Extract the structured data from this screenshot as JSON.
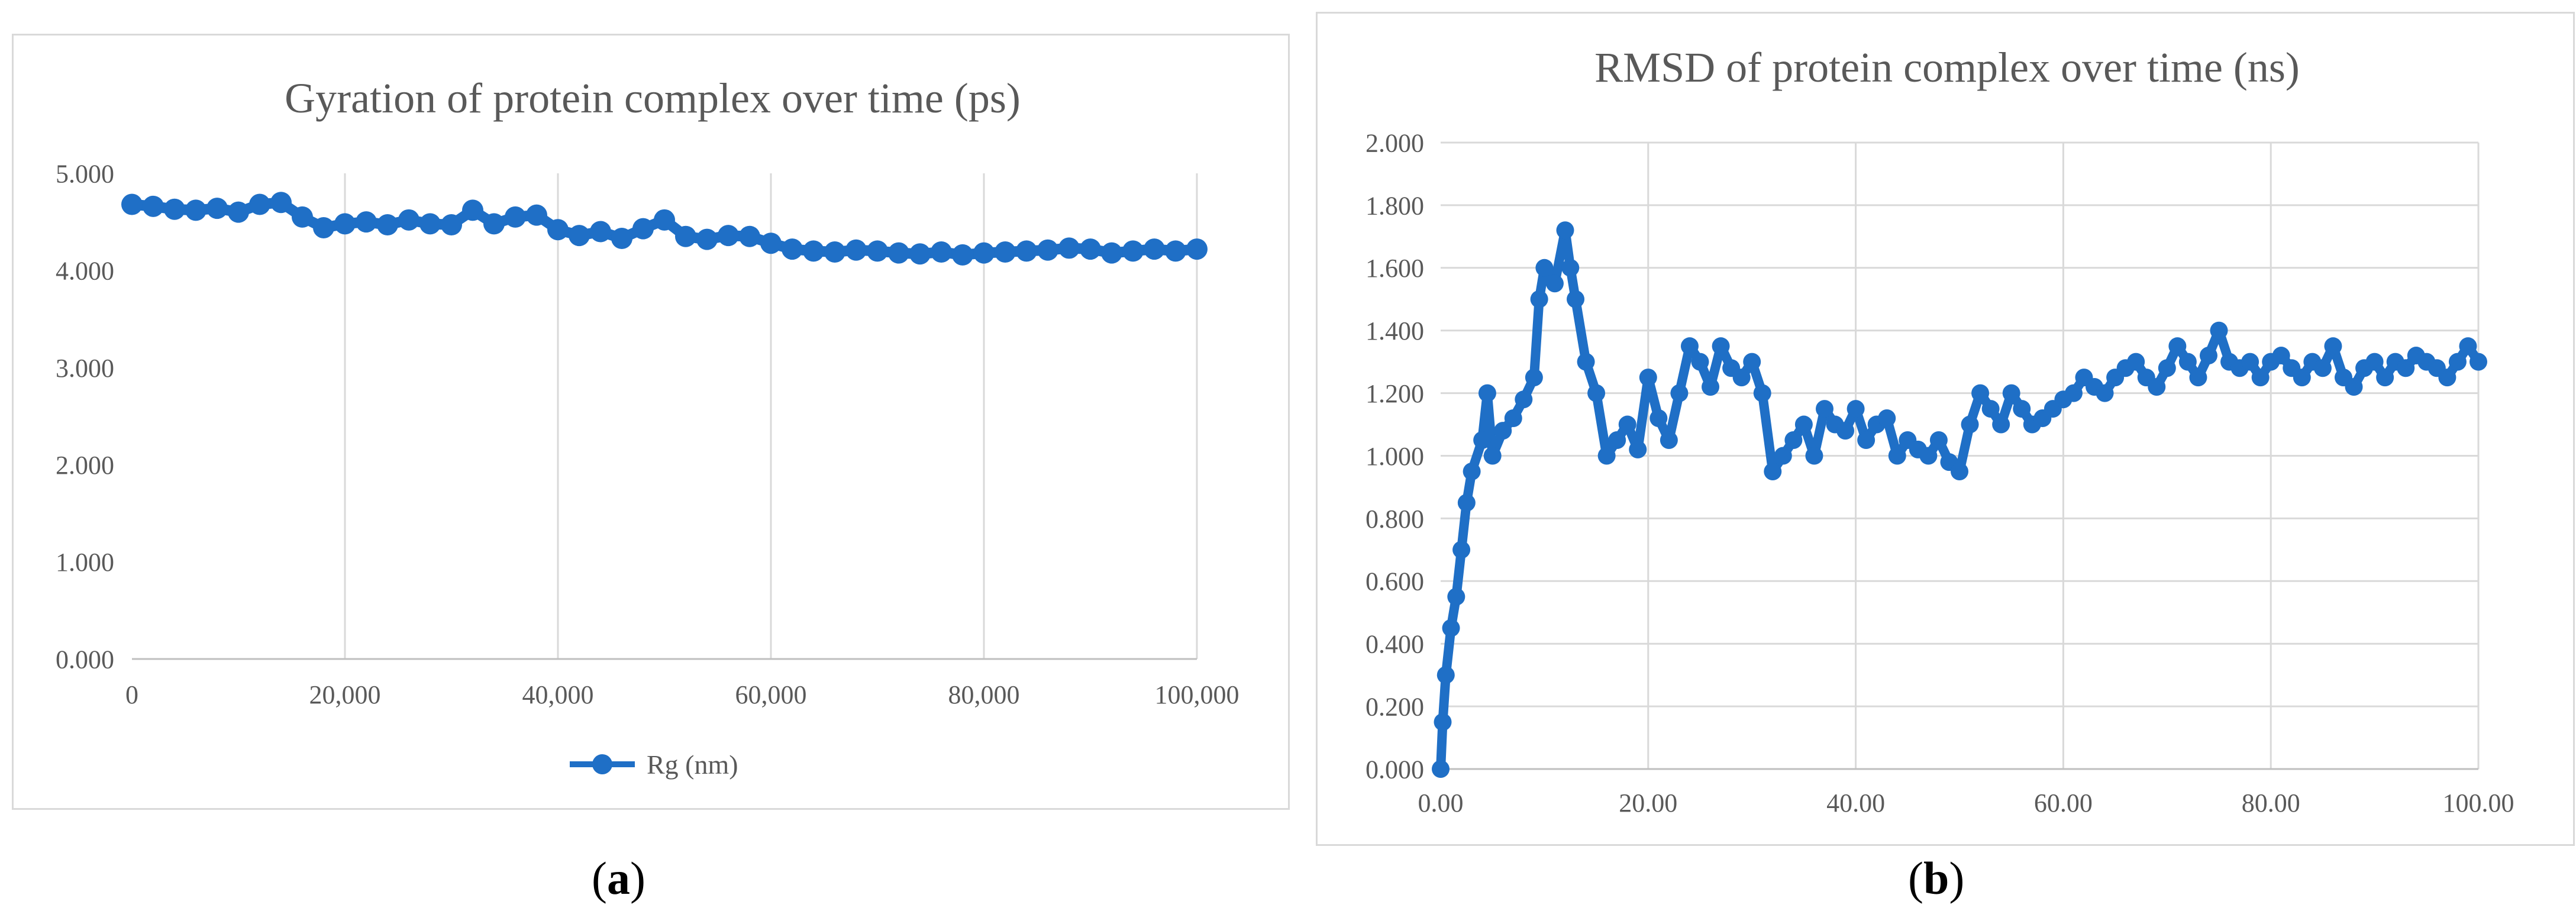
{
  "figure": {
    "panel_a": {
      "label_open": "(",
      "label_letter": "a",
      "label_close": ")"
    },
    "panel_b": {
      "label_open": "(",
      "label_letter": "b",
      "label_close": ")"
    }
  },
  "colors": {
    "series": "#1f6fc6",
    "grid": "#d9d9d9",
    "axis_text": "#595959",
    "title_text": "#595959"
  },
  "chart_data": [
    {
      "type": "line",
      "title": "Gyration of protein complex over time (ps)",
      "xlabel": "",
      "ylabel": "",
      "xlim": [
        0,
        100000
      ],
      "ylim": [
        0,
        5
      ],
      "x_ticks": [
        0,
        20000,
        40000,
        60000,
        80000,
        100000
      ],
      "x_tick_labels": [
        "0",
        "20,000",
        "40,000",
        "60,000",
        "80,000",
        "100,000"
      ],
      "y_ticks": [
        0,
        1,
        2,
        3,
        4,
        5
      ],
      "y_tick_labels": [
        "0.000",
        "1.000",
        "2.000",
        "3.000",
        "4.000",
        "5.000"
      ],
      "grid": "vertical",
      "legend": "bottom",
      "markers": true,
      "series": [
        {
          "name": "Rg (nm)",
          "x": [
            0,
            2000,
            4000,
            6000,
            8000,
            10000,
            12000,
            14000,
            16000,
            18000,
            20000,
            22000,
            24000,
            26000,
            28000,
            30000,
            32000,
            34000,
            36000,
            38000,
            40000,
            42000,
            44000,
            46000,
            48000,
            50000,
            52000,
            54000,
            56000,
            58000,
            60000,
            62000,
            64000,
            66000,
            68000,
            70000,
            72000,
            74000,
            76000,
            78000,
            80000,
            82000,
            84000,
            86000,
            88000,
            90000,
            92000,
            94000,
            96000,
            98000,
            100000
          ],
          "y": [
            4.68,
            4.66,
            4.63,
            4.62,
            4.64,
            4.6,
            4.68,
            4.7,
            4.55,
            4.44,
            4.48,
            4.5,
            4.47,
            4.52,
            4.48,
            4.47,
            4.62,
            4.48,
            4.55,
            4.57,
            4.42,
            4.36,
            4.4,
            4.33,
            4.43,
            4.52,
            4.35,
            4.32,
            4.36,
            4.35,
            4.28,
            4.22,
            4.2,
            4.19,
            4.21,
            4.2,
            4.18,
            4.17,
            4.19,
            4.16,
            4.18,
            4.19,
            4.2,
            4.21,
            4.23,
            4.22,
            4.18,
            4.2,
            4.22,
            4.2,
            4.22
          ]
        }
      ]
    },
    {
      "type": "line",
      "title": "RMSD of protein complex over time (ns)",
      "xlabel": "",
      "ylabel": "",
      "xlim": [
        0,
        100
      ],
      "ylim": [
        0,
        2
      ],
      "x_ticks": [
        0,
        20,
        40,
        60,
        80,
        100
      ],
      "x_tick_labels": [
        "0.00",
        "20.00",
        "40.00",
        "60.00",
        "80.00",
        "100.00"
      ],
      "y_ticks": [
        0,
        0.2,
        0.4,
        0.6,
        0.8,
        1.0,
        1.2,
        1.4,
        1.6,
        1.8,
        2.0
      ],
      "y_tick_labels": [
        "0.000",
        "0.200",
        "0.400",
        "0.600",
        "0.800",
        "1.000",
        "1.200",
        "1.400",
        "1.600",
        "1.800",
        "2.000"
      ],
      "grid": "both",
      "legend": "none",
      "markers": true,
      "series": [
        {
          "x": [
            0,
            0.2,
            0.5,
            1,
            1.5,
            2,
            2.5,
            3,
            4,
            4.5,
            5,
            6,
            7,
            8,
            9,
            9.5,
            10,
            11,
            12,
            12.5,
            13,
            14,
            15,
            16,
            17,
            18,
            19,
            20,
            21,
            22,
            23,
            24,
            25,
            26,
            27,
            28,
            29,
            30,
            31,
            32,
            33,
            34,
            35,
            36,
            37,
            38,
            39,
            40,
            41,
            42,
            43,
            44,
            45,
            46,
            47,
            48,
            49,
            50,
            51,
            52,
            53,
            54,
            55,
            56,
            57,
            58,
            59,
            60,
            61,
            62,
            63,
            64,
            65,
            66,
            67,
            68,
            69,
            70,
            71,
            72,
            73,
            74,
            75,
            76,
            77,
            78,
            79,
            80,
            81,
            82,
            83,
            84,
            85,
            86,
            87,
            88,
            89,
            90,
            91,
            92,
            93,
            94,
            95,
            96,
            97,
            98,
            99,
            100
          ],
          "y": [
            0.0,
            0.15,
            0.3,
            0.45,
            0.55,
            0.7,
            0.85,
            0.95,
            1.05,
            1.2,
            1.0,
            1.08,
            1.12,
            1.18,
            1.25,
            1.5,
            1.6,
            1.55,
            1.72,
            1.6,
            1.5,
            1.3,
            1.2,
            1.0,
            1.05,
            1.1,
            1.02,
            1.25,
            1.12,
            1.05,
            1.2,
            1.35,
            1.3,
            1.22,
            1.35,
            1.28,
            1.25,
            1.3,
            1.2,
            0.95,
            1.0,
            1.05,
            1.1,
            1.0,
            1.15,
            1.1,
            1.08,
            1.15,
            1.05,
            1.1,
            1.12,
            1.0,
            1.05,
            1.02,
            1.0,
            1.05,
            0.98,
            0.95,
            1.1,
            1.2,
            1.15,
            1.1,
            1.2,
            1.15,
            1.1,
            1.12,
            1.15,
            1.18,
            1.2,
            1.25,
            1.22,
            1.2,
            1.25,
            1.28,
            1.3,
            1.25,
            1.22,
            1.28,
            1.35,
            1.3,
            1.25,
            1.32,
            1.4,
            1.3,
            1.28,
            1.3,
            1.25,
            1.3,
            1.32,
            1.28,
            1.25,
            1.3,
            1.28,
            1.35,
            1.25,
            1.22,
            1.28,
            1.3,
            1.25,
            1.3,
            1.28,
            1.32,
            1.3,
            1.28,
            1.25,
            1.3,
            1.35,
            1.3
          ]
        }
      ]
    }
  ]
}
